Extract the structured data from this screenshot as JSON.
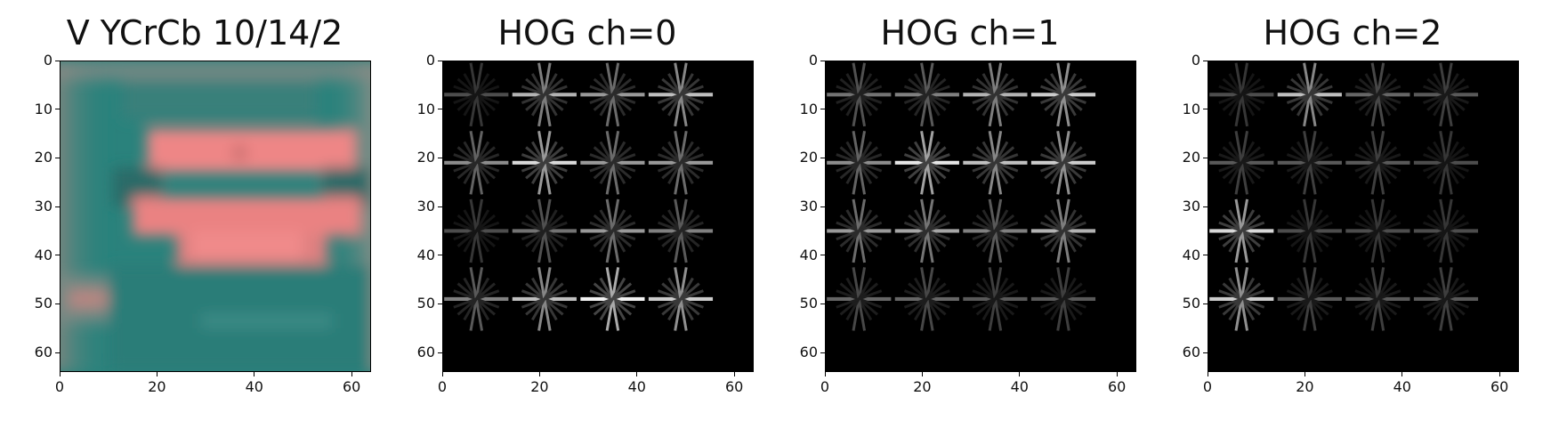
{
  "chart_data": [
    {
      "type": "image",
      "title": "V YCrCb 10/14/2",
      "colormap": "rgb",
      "colors": {
        "background": "#2a827c",
        "car": "#f08686",
        "dark": "#2b6a68",
        "edge": "#9c8f86"
      },
      "xlim": [
        0,
        64
      ],
      "ylim": [
        64,
        0
      ],
      "xticks": [
        0,
        20,
        40,
        60
      ],
      "yticks": [
        0,
        10,
        20,
        30,
        40,
        50,
        60
      ]
    },
    {
      "type": "image",
      "title": "HOG ch=0",
      "colormap": "gray",
      "xlim": [
        0,
        64
      ],
      "ylim": [
        64,
        0
      ],
      "xticks": [
        0,
        20,
        40,
        60
      ],
      "yticks": [
        0,
        10,
        20,
        30,
        40,
        50,
        60
      ],
      "cell_centers": [
        7,
        21,
        35,
        49
      ],
      "cell_intensity": [
        [
          0.3,
          0.7,
          0.6,
          0.75
        ],
        [
          0.55,
          0.85,
          0.6,
          0.6
        ],
        [
          0.3,
          0.45,
          0.6,
          0.5
        ],
        [
          0.5,
          0.75,
          0.95,
          0.8
        ]
      ]
    },
    {
      "type": "image",
      "title": "HOG ch=1",
      "colormap": "gray",
      "xlim": [
        0,
        64
      ],
      "ylim": [
        64,
        0
      ],
      "xticks": [
        0,
        20,
        40,
        60
      ],
      "yticks": [
        0,
        10,
        20,
        30,
        40,
        50,
        60
      ],
      "cell_centers": [
        7,
        21,
        35,
        49
      ],
      "cell_intensity": [
        [
          0.45,
          0.5,
          0.7,
          0.8
        ],
        [
          0.55,
          0.9,
          0.75,
          0.8
        ],
        [
          0.6,
          0.65,
          0.5,
          0.7
        ],
        [
          0.4,
          0.4,
          0.35,
          0.35
        ]
      ]
    },
    {
      "type": "image",
      "title": "HOG ch=2",
      "colormap": "gray",
      "xlim": [
        0,
        64
      ],
      "ylim": [
        64,
        0
      ],
      "xticks": [
        0,
        20,
        40,
        60
      ],
      "yticks": [
        0,
        10,
        20,
        30,
        40,
        50,
        60
      ],
      "cell_centers": [
        7,
        21,
        35,
        49
      ],
      "cell_intensity": [
        [
          0.3,
          0.75,
          0.4,
          0.35
        ],
        [
          0.35,
          0.35,
          0.35,
          0.3
        ],
        [
          0.85,
          0.3,
          0.3,
          0.3
        ],
        [
          0.8,
          0.35,
          0.35,
          0.35
        ]
      ]
    }
  ]
}
